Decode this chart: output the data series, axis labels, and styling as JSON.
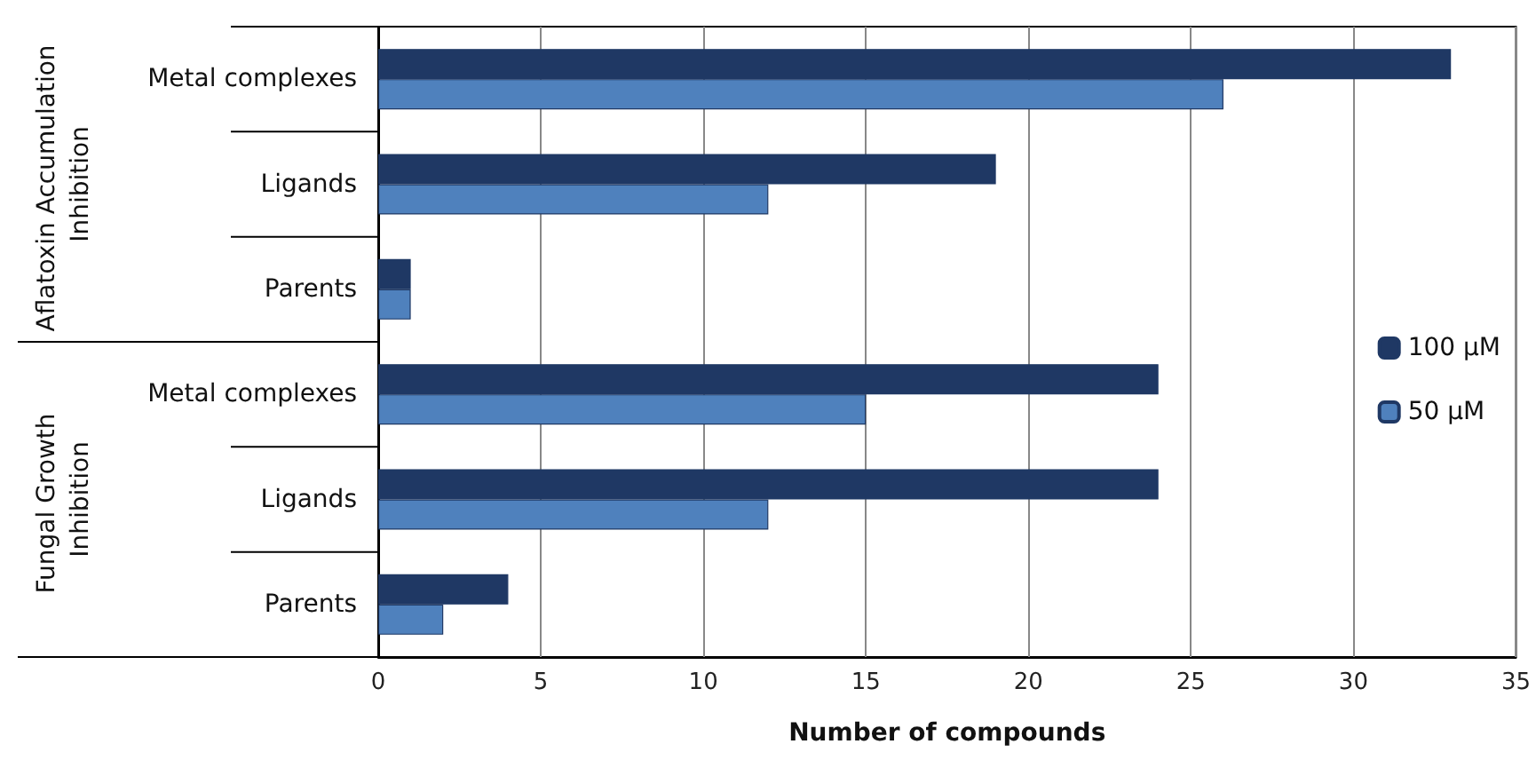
{
  "chart_data": {
    "type": "bar",
    "orientation": "horizontal",
    "xlabel": "Number of compounds",
    "categories": [
      "Metal complexes",
      "Ligands",
      "Parents",
      "Metal complexes",
      "Ligands",
      "Parents"
    ],
    "series": [
      {
        "name": "100 µM",
        "color": "#1f3864",
        "values": [
          33,
          19,
          1,
          24,
          24,
          4
        ]
      },
      {
        "name": "50 µM",
        "color": "#4f81bd",
        "values": [
          26,
          12,
          1,
          15,
          12,
          2
        ]
      }
    ],
    "xlim": [
      0,
      35
    ],
    "xticks": [
      0,
      5,
      10,
      15,
      20,
      25,
      30,
      35
    ],
    "grid": "x",
    "legend": "right",
    "annotations": [
      "Aflatoxin Accumulation Inhibition",
      "Fungal Growth Inhibition"
    ]
  }
}
